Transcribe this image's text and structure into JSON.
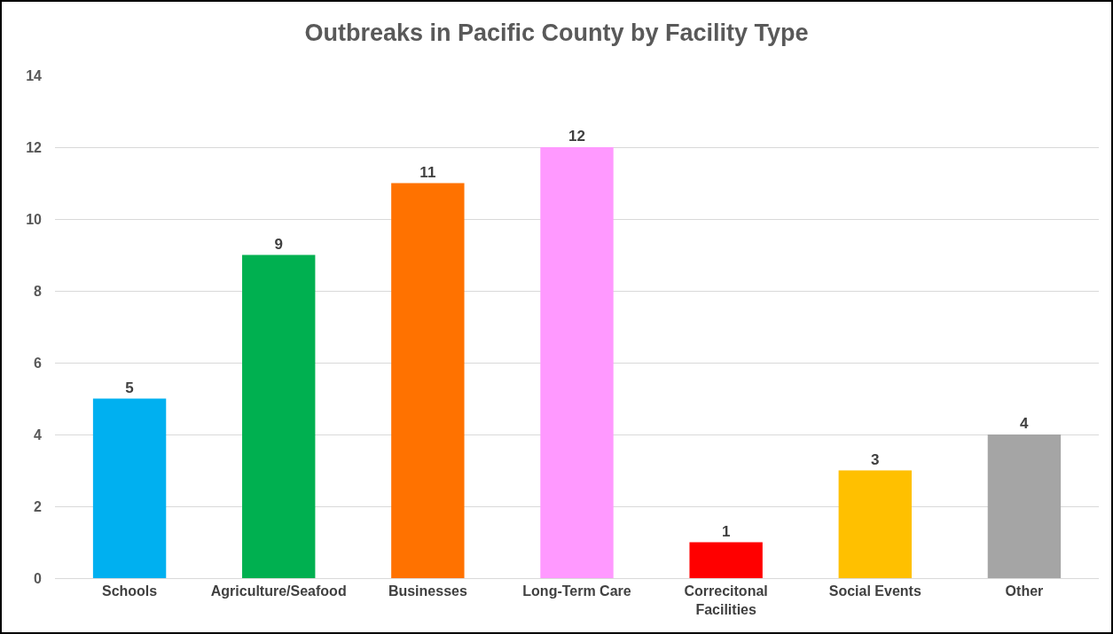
{
  "chart_data": {
    "type": "bar",
    "title": "Outbreaks in Pacific County by Facility Type",
    "categories": [
      "Schools",
      "Agriculture/Seafood",
      "Businesses",
      "Long-Term Care",
      "Correcitonal Facilities",
      "Social Events",
      "Other"
    ],
    "values": [
      5,
      9,
      11,
      12,
      1,
      3,
      4
    ],
    "colors": [
      "#00b0f0",
      "#00b050",
      "#ff7200",
      "#ff99ff",
      "#ff0000",
      "#ffc000",
      "#a5a5a5"
    ],
    "ylim": [
      0,
      14
    ],
    "yticks": [
      0,
      2,
      4,
      6,
      8,
      10,
      12,
      14
    ],
    "grid": "y",
    "data_labels": true
  }
}
